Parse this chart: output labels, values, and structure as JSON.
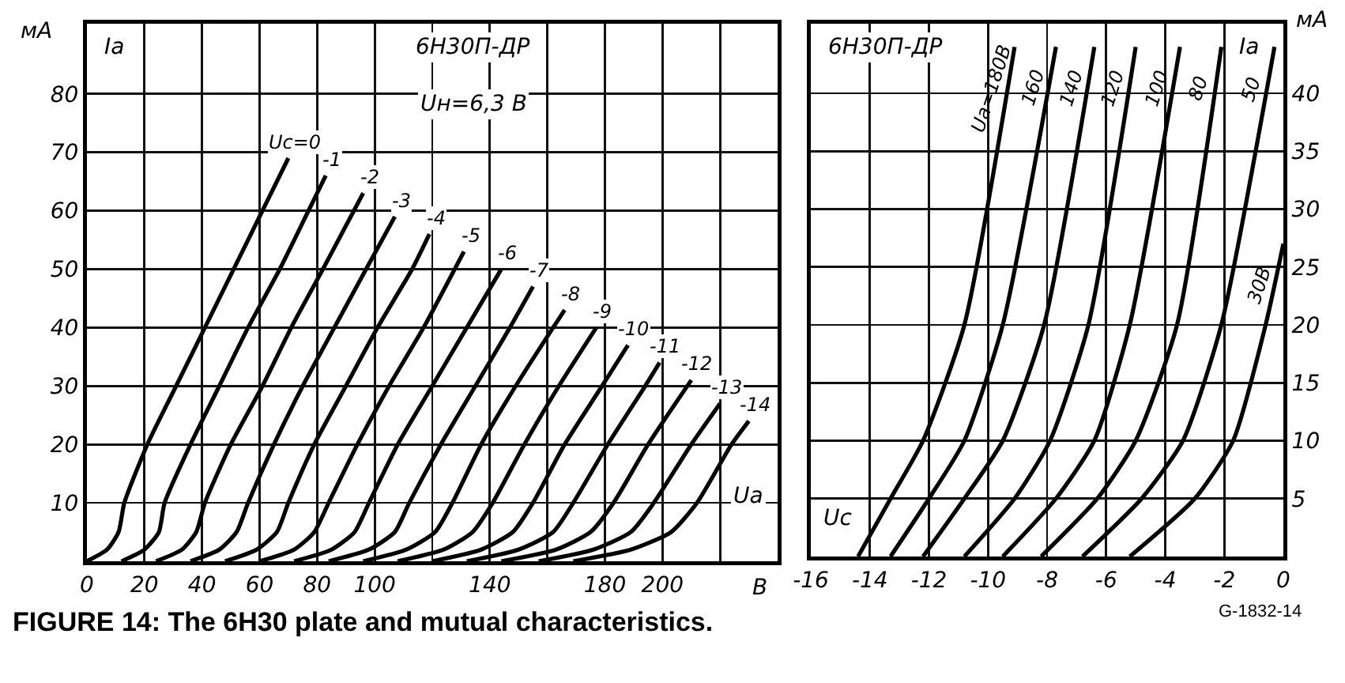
{
  "chart_data": [
    {
      "type": "line",
      "title": "6Н30П-ДР",
      "ylabel": "мА",
      "xlim": [
        0,
        240
      ],
      "ylim": [
        0,
        92
      ],
      "xticks": [
        0,
        20,
        40,
        60,
        80,
        100,
        {
          "value": 120,
          "label": null
        },
        140,
        {
          "value": 160,
          "label": null
        },
        180,
        200,
        {
          "value": 220,
          "label": null
        }
      ],
      "yticks": [
        10,
        20,
        30,
        40,
        50,
        60,
        70,
        80
      ],
      "grid": true,
      "legend": false,
      "annotations": [
        "Iа",
        "Uн=6,3 В",
        "Uа",
        "В",
        "FIGURE 14: The 6H30 plate and mutual characteristics."
      ],
      "series": [
        {
          "name": "Uс=0",
          "color": "#000000",
          "x": [
            0,
            7,
            11,
            13,
            21,
            31,
            41,
            51,
            61,
            70
          ],
          "values": [
            0,
            2,
            5,
            10,
            20,
            30,
            40,
            50,
            60,
            69
          ]
        },
        {
          "name": "-1",
          "color": "#000000",
          "x": [
            12,
            20,
            25,
            27,
            36,
            46,
            56,
            67,
            77,
            83
          ],
          "values": [
            0,
            2,
            5,
            10,
            20,
            30,
            40,
            50,
            60,
            66
          ]
        },
        {
          "name": "-2",
          "color": "#000000",
          "x": [
            24,
            33,
            38,
            41,
            50,
            61,
            71,
            82,
            96
          ],
          "values": [
            0,
            2,
            5,
            10,
            20,
            30,
            40,
            50,
            63
          ]
        },
        {
          "name": "-3",
          "color": "#000000",
          "x": [
            36,
            46,
            52,
            56,
            65,
            75,
            86,
            97,
            107
          ],
          "values": [
            0,
            2,
            5,
            10,
            20,
            30,
            40,
            50,
            59
          ]
        },
        {
          "name": "-4",
          "color": "#000000",
          "x": [
            48,
            59,
            66,
            70,
            79,
            90,
            101,
            113,
            119
          ],
          "values": [
            0,
            2,
            5,
            10,
            20,
            30,
            40,
            50,
            56
          ]
        },
        {
          "name": "-5",
          "color": "#000000",
          "x": [
            60,
            72,
            79,
            84,
            94,
            105,
            117,
            131
          ],
          "values": [
            0,
            2,
            5,
            10,
            20,
            30,
            40,
            53
          ]
        },
        {
          "name": "-6",
          "color": "#000000",
          "x": [
            72,
            85,
            93,
            98,
            108,
            120,
            132,
            144
          ],
          "values": [
            0,
            2,
            5,
            10,
            20,
            30,
            40,
            50
          ]
        },
        {
          "name": "-7",
          "color": "#000000",
          "x": [
            84,
            98,
            107,
            112,
            123,
            135,
            147,
            155
          ],
          "values": [
            0,
            2,
            5,
            10,
            20,
            30,
            40,
            47
          ]
        },
        {
          "name": "-8",
          "color": "#000000",
          "x": [
            96,
            111,
            121,
            127,
            137,
            149,
            162,
            166
          ],
          "values": [
            0,
            2,
            5,
            10,
            20,
            30,
            40,
            43
          ]
        },
        {
          "name": "-9",
          "color": "#000000",
          "x": [
            108,
            124,
            134,
            141,
            152,
            164,
            177
          ],
          "values": [
            0,
            2,
            5,
            10,
            20,
            30,
            40
          ]
        },
        {
          "name": "-10",
          "color": "#000000",
          "x": [
            120,
            137,
            148,
            155,
            166,
            179,
            188
          ],
          "values": [
            0,
            2,
            5,
            10,
            20,
            30,
            37
          ]
        },
        {
          "name": "-11",
          "color": "#000000",
          "x": [
            132,
            150,
            162,
            169,
            181,
            194,
            199
          ],
          "values": [
            0,
            2,
            5,
            10,
            20,
            30,
            34
          ]
        },
        {
          "name": "-12",
          "color": "#000000",
          "x": [
            144,
            163,
            175,
            183,
            195,
            210
          ],
          "values": [
            0,
            2,
            5,
            10,
            20,
            31
          ]
        },
        {
          "name": "-13",
          "color": "#000000",
          "x": [
            157,
            176,
            189,
            197,
            210,
            220
          ],
          "values": [
            0,
            2,
            5,
            10,
            20,
            27
          ]
        },
        {
          "name": "-14",
          "color": "#000000",
          "x": [
            169,
            189,
            203,
            212,
            224,
            230
          ],
          "values": [
            0,
            2,
            5,
            10,
            20,
            24
          ]
        }
      ]
    },
    {
      "type": "line",
      "title": "6Н30П-ДР",
      "ylabel": "мА",
      "xlim": [
        -16,
        0
      ],
      "ylim": [
        0,
        46
      ],
      "xticks": [
        -16,
        -14,
        -12,
        -10,
        -8,
        -6,
        -4,
        -2,
        0
      ],
      "yticks": [
        5,
        10,
        15,
        20,
        25,
        30,
        35,
        40
      ],
      "grid": true,
      "legend": false,
      "annotations": [
        "Iа",
        "Uс",
        "G-1832-14"
      ],
      "series": [
        {
          "name": "Uа=180В",
          "color": "#000000",
          "x": [
            -14.4,
            -13.3,
            -12.2,
            -10.8,
            -9.1
          ],
          "values": [
            0,
            5,
            10,
            20,
            44
          ]
        },
        {
          "name": "160",
          "color": "#000000",
          "x": [
            -13.3,
            -12.0,
            -10.8,
            -9.5,
            -7.7
          ],
          "values": [
            0,
            5,
            10,
            20,
            44
          ]
        },
        {
          "name": "140",
          "color": "#000000",
          "x": [
            -12.2,
            -10.8,
            -9.5,
            -8.1,
            -6.4
          ],
          "values": [
            0,
            5,
            10,
            20,
            44
          ]
        },
        {
          "name": "120",
          "color": "#000000",
          "x": [
            -10.8,
            -9.1,
            -7.9,
            -6.6,
            -5.0
          ],
          "values": [
            0,
            5,
            10,
            20,
            44
          ]
        },
        {
          "name": "100",
          "color": "#000000",
          "x": [
            -9.5,
            -7.7,
            -6.4,
            -5.2,
            -3.5
          ],
          "values": [
            0,
            5,
            10,
            20,
            44
          ]
        },
        {
          "name": "80",
          "color": "#000000",
          "x": [
            -8.2,
            -6.3,
            -5.0,
            -3.6,
            -2.1
          ],
          "values": [
            0,
            5,
            10,
            20,
            44
          ]
        },
        {
          "name": "50",
          "color": "#000000",
          "x": [
            -6.8,
            -4.8,
            -3.4,
            -2.1,
            -0.3
          ],
          "values": [
            0,
            5,
            10,
            20,
            44
          ]
        },
        {
          "name": "30В",
          "color": "#000000",
          "x": [
            -5.2,
            -3.0,
            -1.7,
            -0.6,
            0
          ],
          "values": [
            0,
            5,
            10,
            20,
            27
          ]
        }
      ]
    }
  ]
}
